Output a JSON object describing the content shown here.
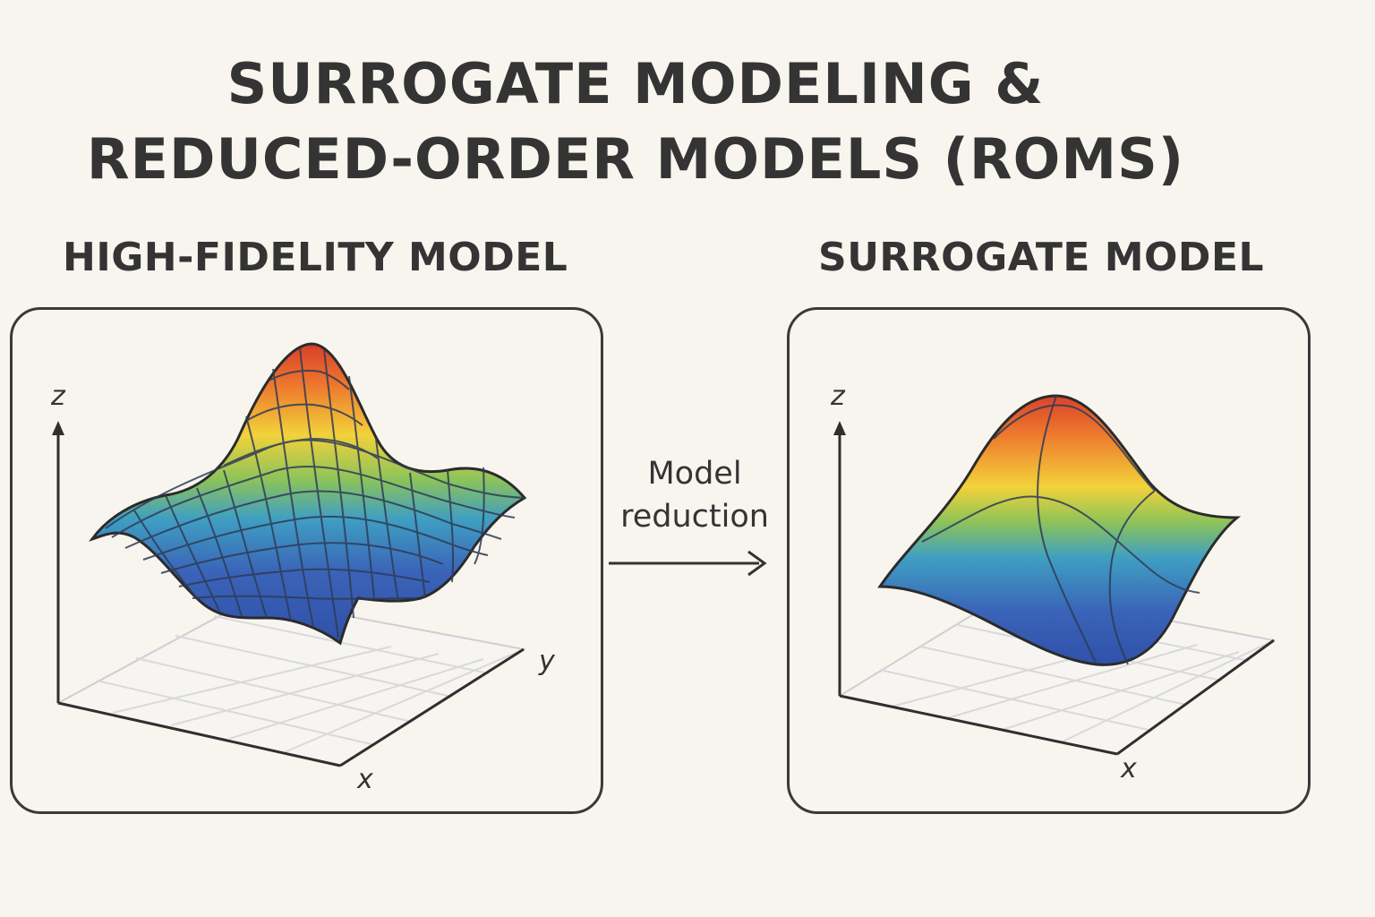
{
  "title": {
    "line1": "SURROGATE MODELING &",
    "line2": "REDUCED-ORDER MODELS (ROMS)"
  },
  "high_fidelity": {
    "label": "HIGH-FIDELITY MODEL",
    "axis_z": "z",
    "axis_y": "y",
    "axis_x": "x"
  },
  "surrogate": {
    "label": "SURROGATE MODEL",
    "axis_z": "z",
    "axis_x": "x"
  },
  "arrow": {
    "line1": "Model",
    "line2": "reduction"
  },
  "colors": {
    "background": "#f8f5ee",
    "outline": "#3a3a3a",
    "surface_low": "#3a63b8",
    "surface_mid_low": "#3f9fc2",
    "surface_mid": "#f2d23a",
    "surface_high": "#e25530"
  }
}
